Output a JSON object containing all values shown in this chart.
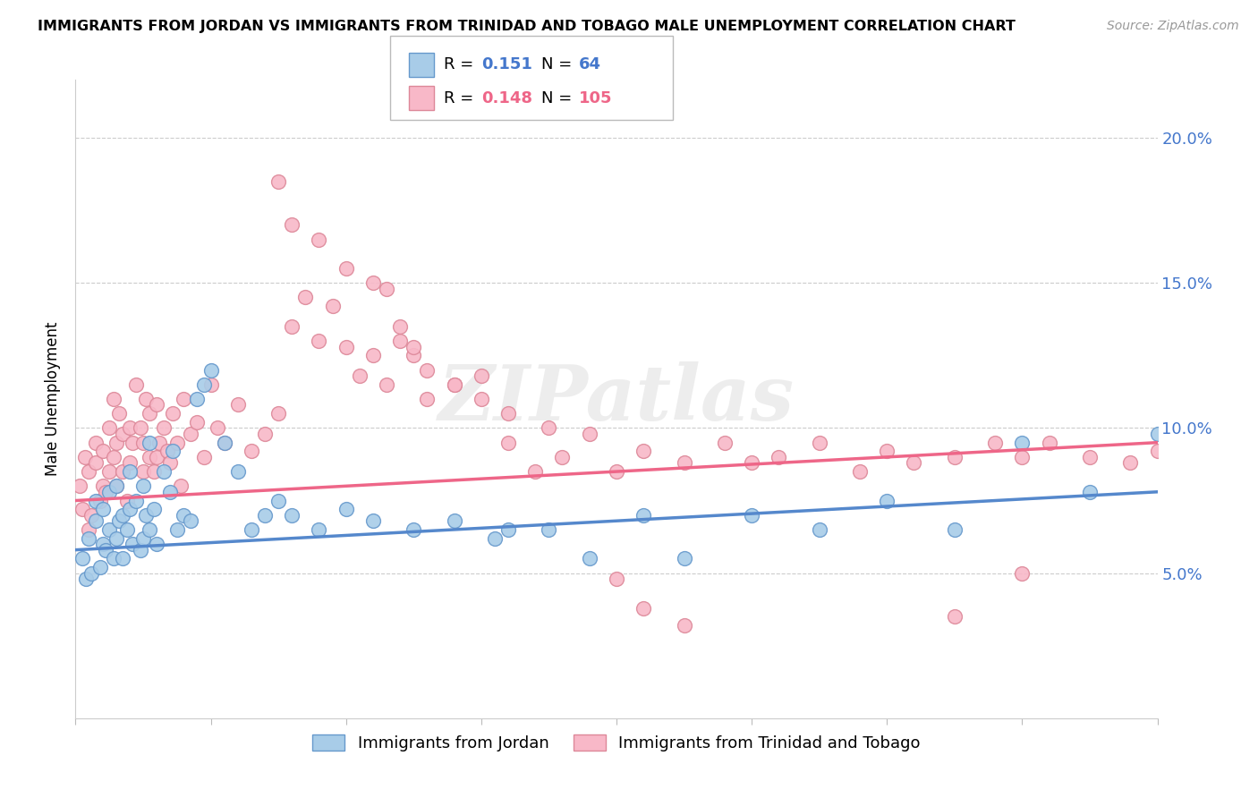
{
  "title": "IMMIGRANTS FROM JORDAN VS IMMIGRANTS FROM TRINIDAD AND TOBAGO MALE UNEMPLOYMENT CORRELATION CHART",
  "source": "Source: ZipAtlas.com",
  "ylabel": "Male Unemployment",
  "xlim": [
    0.0,
    8.0
  ],
  "ylim": [
    0.0,
    22.0
  ],
  "ytick_vals": [
    5.0,
    10.0,
    15.0,
    20.0
  ],
  "ytick_labels": [
    "5.0%",
    "10.0%",
    "15.0%",
    "20.0%"
  ],
  "series1": {
    "label": "Immigrants from Jordan",
    "R": "0.151",
    "N": "64",
    "color": "#a8cce8",
    "edge_color": "#6699cc",
    "trend_color": "#5588cc"
  },
  "series2": {
    "label": "Immigrants from Trinidad and Tobago",
    "R": "0.148",
    "N": "105",
    "color": "#f8b8c8",
    "edge_color": "#dd8899",
    "trend_color": "#ee6688"
  },
  "r1_color": "#4477cc",
  "n1_color": "#4477cc",
  "r2_color": "#ee6688",
  "n2_color": "#ee6688",
  "watermark": "ZIPatlas",
  "jordan_x": [
    0.05,
    0.08,
    0.1,
    0.12,
    0.15,
    0.15,
    0.18,
    0.2,
    0.2,
    0.22,
    0.25,
    0.25,
    0.28,
    0.3,
    0.3,
    0.32,
    0.35,
    0.35,
    0.38,
    0.4,
    0.4,
    0.42,
    0.45,
    0.48,
    0.5,
    0.5,
    0.52,
    0.55,
    0.55,
    0.58,
    0.6,
    0.65,
    0.7,
    0.72,
    0.75,
    0.8,
    0.85,
    0.9,
    0.95,
    1.0,
    1.1,
    1.2,
    1.3,
    1.4,
    1.5,
    1.6,
    1.8,
    2.0,
    2.2,
    2.5,
    2.8,
    3.1,
    3.2,
    3.5,
    3.8,
    4.2,
    4.5,
    5.0,
    5.5,
    6.0,
    6.5,
    7.0,
    7.5,
    8.0
  ],
  "jordan_y": [
    5.5,
    4.8,
    6.2,
    5.0,
    6.8,
    7.5,
    5.2,
    6.0,
    7.2,
    5.8,
    6.5,
    7.8,
    5.5,
    6.2,
    8.0,
    6.8,
    7.0,
    5.5,
    6.5,
    7.2,
    8.5,
    6.0,
    7.5,
    5.8,
    6.2,
    8.0,
    7.0,
    6.5,
    9.5,
    7.2,
    6.0,
    8.5,
    7.8,
    9.2,
    6.5,
    7.0,
    6.8,
    11.0,
    11.5,
    12.0,
    9.5,
    8.5,
    6.5,
    7.0,
    7.5,
    7.0,
    6.5,
    7.2,
    6.8,
    6.5,
    6.8,
    6.2,
    6.5,
    6.5,
    5.5,
    7.0,
    5.5,
    7.0,
    6.5,
    7.5,
    6.5,
    9.5,
    7.8,
    9.8
  ],
  "trinidad_x": [
    0.03,
    0.05,
    0.07,
    0.1,
    0.1,
    0.12,
    0.15,
    0.15,
    0.18,
    0.2,
    0.2,
    0.22,
    0.25,
    0.25,
    0.28,
    0.28,
    0.3,
    0.3,
    0.32,
    0.35,
    0.35,
    0.38,
    0.4,
    0.4,
    0.42,
    0.45,
    0.48,
    0.5,
    0.5,
    0.52,
    0.55,
    0.55,
    0.58,
    0.6,
    0.6,
    0.62,
    0.65,
    0.68,
    0.7,
    0.72,
    0.75,
    0.78,
    0.8,
    0.85,
    0.9,
    0.95,
    1.0,
    1.05,
    1.1,
    1.2,
    1.3,
    1.4,
    1.5,
    1.6,
    1.7,
    1.8,
    1.9,
    2.0,
    2.1,
    2.2,
    2.3,
    2.4,
    2.5,
    2.6,
    2.8,
    3.0,
    3.2,
    3.4,
    3.6,
    3.8,
    4.0,
    4.2,
    4.5,
    4.8,
    5.0,
    5.2,
    5.5,
    5.8,
    6.0,
    6.2,
    6.5,
    6.8,
    7.0,
    7.2,
    7.5,
    7.8,
    8.0,
    1.5,
    1.6,
    1.8,
    2.0,
    2.2,
    2.3,
    2.4,
    2.5,
    2.6,
    2.8,
    3.0,
    3.2,
    3.5,
    4.0,
    4.2,
    4.5,
    6.5,
    7.0
  ],
  "trinidad_y": [
    8.0,
    7.2,
    9.0,
    6.5,
    8.5,
    7.0,
    8.8,
    9.5,
    7.5,
    8.0,
    9.2,
    7.8,
    8.5,
    10.0,
    9.0,
    11.0,
    8.0,
    9.5,
    10.5,
    8.5,
    9.8,
    7.5,
    10.0,
    8.8,
    9.5,
    11.5,
    10.0,
    8.5,
    9.5,
    11.0,
    9.0,
    10.5,
    8.5,
    9.0,
    10.8,
    9.5,
    10.0,
    9.2,
    8.8,
    10.5,
    9.5,
    8.0,
    11.0,
    9.8,
    10.2,
    9.0,
    11.5,
    10.0,
    9.5,
    10.8,
    9.2,
    9.8,
    10.5,
    13.5,
    14.5,
    13.0,
    14.2,
    12.8,
    11.8,
    12.5,
    11.5,
    13.0,
    12.5,
    11.0,
    11.5,
    11.8,
    9.5,
    8.5,
    9.0,
    9.8,
    8.5,
    9.2,
    8.8,
    9.5,
    8.8,
    9.0,
    9.5,
    8.5,
    9.2,
    8.8,
    9.0,
    9.5,
    9.0,
    9.5,
    9.0,
    8.8,
    9.2,
    18.5,
    17.0,
    16.5,
    15.5,
    15.0,
    14.8,
    13.5,
    12.8,
    12.0,
    11.5,
    11.0,
    10.5,
    10.0,
    4.8,
    3.8,
    3.2,
    3.5,
    5.0
  ]
}
